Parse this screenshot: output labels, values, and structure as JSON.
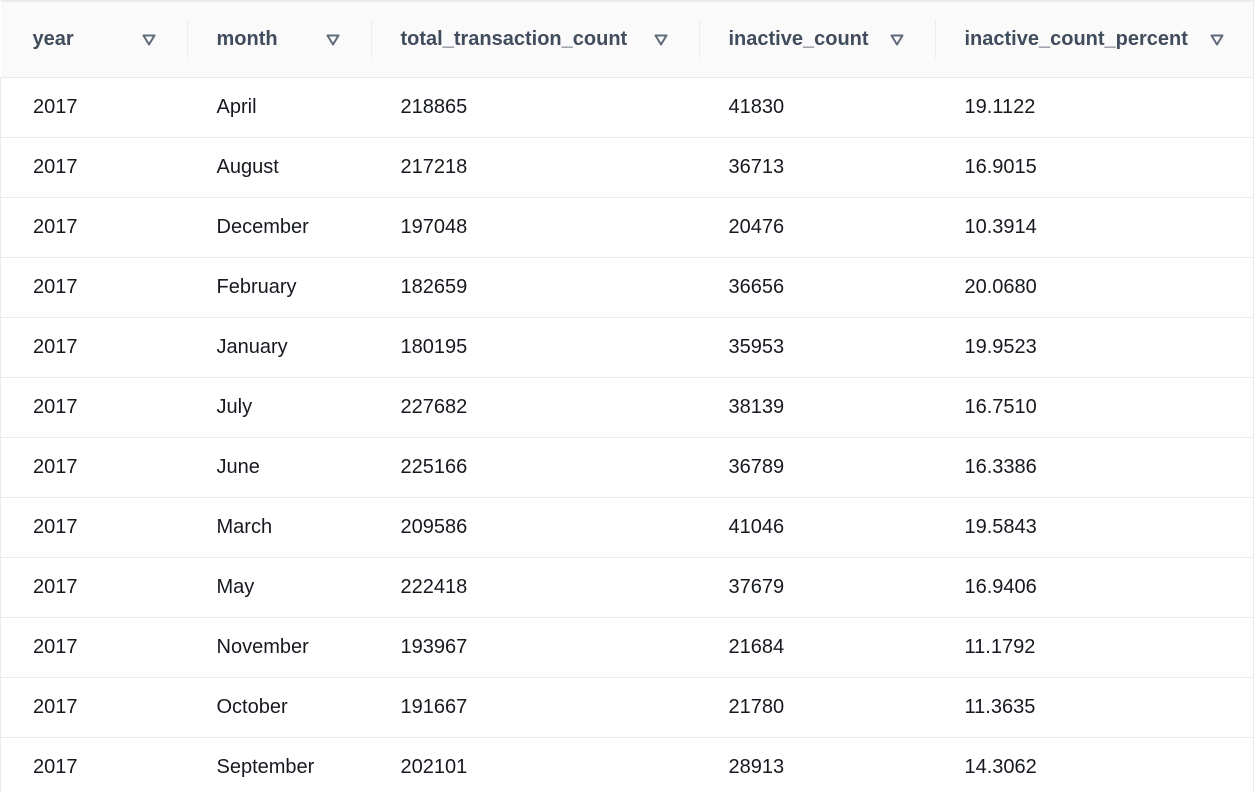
{
  "table": {
    "columns": [
      {
        "label": "year"
      },
      {
        "label": "month"
      },
      {
        "label": "total_transaction_count"
      },
      {
        "label": "inactive_count"
      },
      {
        "label": "inactive_count_percent"
      }
    ],
    "rows": [
      [
        "2017",
        "April",
        "218865",
        "41830",
        "19.1122"
      ],
      [
        "2017",
        "August",
        "217218",
        "36713",
        "16.9015"
      ],
      [
        "2017",
        "December",
        "197048",
        "20476",
        "10.3914"
      ],
      [
        "2017",
        "February",
        "182659",
        "36656",
        "20.0680"
      ],
      [
        "2017",
        "January",
        "180195",
        "35953",
        "19.9523"
      ],
      [
        "2017",
        "July",
        "227682",
        "38139",
        "16.7510"
      ],
      [
        "2017",
        "June",
        "225166",
        "36789",
        "16.3386"
      ],
      [
        "2017",
        "March",
        "209586",
        "41046",
        "19.5843"
      ],
      [
        "2017",
        "May",
        "222418",
        "37679",
        "16.9406"
      ],
      [
        "2017",
        "November",
        "193967",
        "21684",
        "11.1792"
      ],
      [
        "2017",
        "October",
        "191667",
        "21780",
        "11.3635"
      ],
      [
        "2017",
        "September",
        "202101",
        "28913",
        "14.3062"
      ]
    ]
  },
  "icons": {
    "sort": "sort-caret-down-icon"
  },
  "colors": {
    "header_bg": "#fafafa",
    "header_text": "#414d5c",
    "cell_text": "#16191f",
    "border": "#e9ebed",
    "sort_icon": "#5f6b7a"
  }
}
